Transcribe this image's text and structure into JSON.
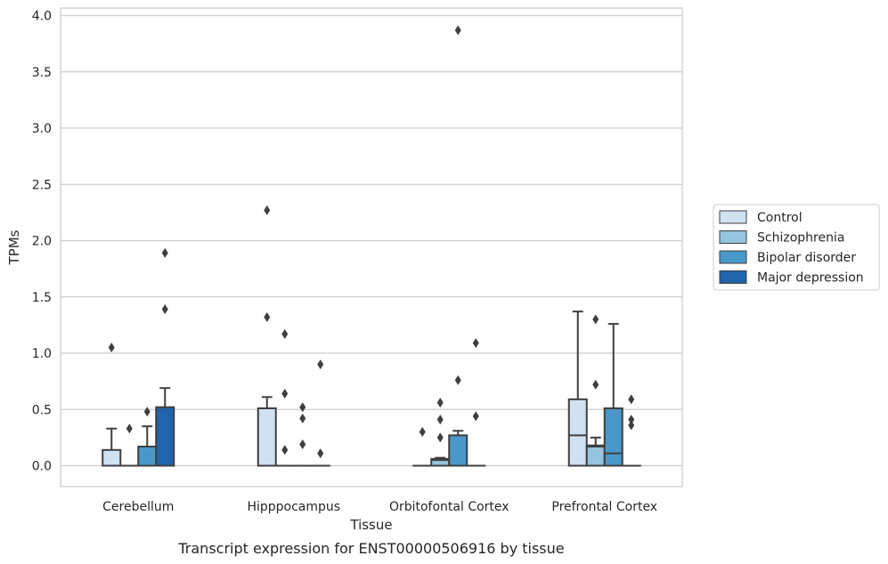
{
  "chart_data": {
    "type": "box",
    "title": "",
    "caption": "Transcript expression for ENST00000506916 by tissue",
    "xlabel": "Tissue",
    "ylabel": "TPMs",
    "ylim": [
      -0.19,
      4.08
    ],
    "yticks": [
      "0.0",
      "0.5",
      "1.0",
      "1.5",
      "2.0",
      "2.5",
      "3.0",
      "3.5",
      "4.0"
    ],
    "ytick_values": [
      0,
      0.5,
      1.0,
      1.5,
      2.0,
      2.5,
      3.0,
      3.5,
      4.0
    ],
    "categories": [
      "Cerebellum",
      "Hipppocampus",
      "Orbitofontal Cortex",
      "Prefrontal Cortex"
    ],
    "grid": "horizontal",
    "legend_position": "right",
    "series": [
      {
        "name": "Control",
        "color": "#d0e1f2",
        "boxes": [
          {
            "q1": 0,
            "median": 0,
            "q3": 0.14,
            "whisker_low": 0,
            "whisker_high": 0.33,
            "outliers": [
              1.05
            ]
          },
          {
            "q1": 0,
            "median": 0,
            "q3": 0.51,
            "whisker_low": 0,
            "whisker_high": 0.61,
            "outliers": [
              1.32,
              2.27
            ]
          },
          {
            "q1": 0,
            "median": 0,
            "q3": 0,
            "whisker_low": 0,
            "whisker_high": 0,
            "outliers": [
              0.3
            ]
          },
          {
            "q1": 0,
            "median": 0.27,
            "q3": 0.59,
            "whisker_low": 0,
            "whisker_high": 1.37,
            "outliers": []
          }
        ]
      },
      {
        "name": "Schizophrenia",
        "color": "#94c4df",
        "boxes": [
          {
            "q1": 0,
            "median": 0,
            "q3": 0,
            "whisker_low": 0,
            "whisker_high": 0,
            "outliers": [
              0.33
            ]
          },
          {
            "q1": 0,
            "median": 0,
            "q3": 0,
            "whisker_low": 0,
            "whisker_high": 0,
            "outliers": [
              0.14,
              0.64,
              1.17
            ]
          },
          {
            "q1": 0,
            "median": 0.05,
            "q3": 0.06,
            "whisker_low": 0,
            "whisker_high": 0.07,
            "outliers": [
              0.25,
              0.41,
              0.56
            ]
          },
          {
            "q1": 0,
            "median": 0.17,
            "q3": 0.18,
            "whisker_low": 0,
            "whisker_high": 0.25,
            "outliers": [
              0.72,
              1.3
            ]
          }
        ]
      },
      {
        "name": "Bipolar disorder",
        "color": "#4a98c9",
        "boxes": [
          {
            "q1": 0,
            "median": 0,
            "q3": 0.17,
            "whisker_low": 0,
            "whisker_high": 0.35,
            "outliers": [
              0.48
            ]
          },
          {
            "q1": 0,
            "median": 0,
            "q3": 0,
            "whisker_low": 0,
            "whisker_high": 0,
            "outliers": [
              0.19,
              0.42,
              0.52
            ]
          },
          {
            "q1": 0,
            "median": 0,
            "q3": 0.27,
            "whisker_low": 0,
            "whisker_high": 0.31,
            "outliers": [
              0.76,
              3.87
            ]
          },
          {
            "q1": 0,
            "median": 0.11,
            "q3": 0.51,
            "whisker_low": 0,
            "whisker_high": 1.26,
            "outliers": []
          }
        ]
      },
      {
        "name": "Major depression",
        "color": "#2164ab",
        "boxes": [
          {
            "q1": 0,
            "median": 0,
            "q3": 0.52,
            "whisker_low": 0,
            "whisker_high": 0.69,
            "outliers": [
              1.39,
              1.89
            ]
          },
          {
            "q1": 0,
            "median": 0,
            "q3": 0,
            "whisker_low": 0,
            "whisker_high": 0,
            "outliers": [
              0.11,
              0.9
            ]
          },
          {
            "q1": 0,
            "median": 0,
            "q3": 0,
            "whisker_low": 0,
            "whisker_high": 0,
            "outliers": [
              0.44,
              1.09
            ]
          },
          {
            "q1": 0,
            "median": 0,
            "q3": 0,
            "whisker_low": 0,
            "whisker_high": 0,
            "outliers": [
              0.36,
              0.41,
              0.59
            ]
          }
        ]
      }
    ]
  }
}
